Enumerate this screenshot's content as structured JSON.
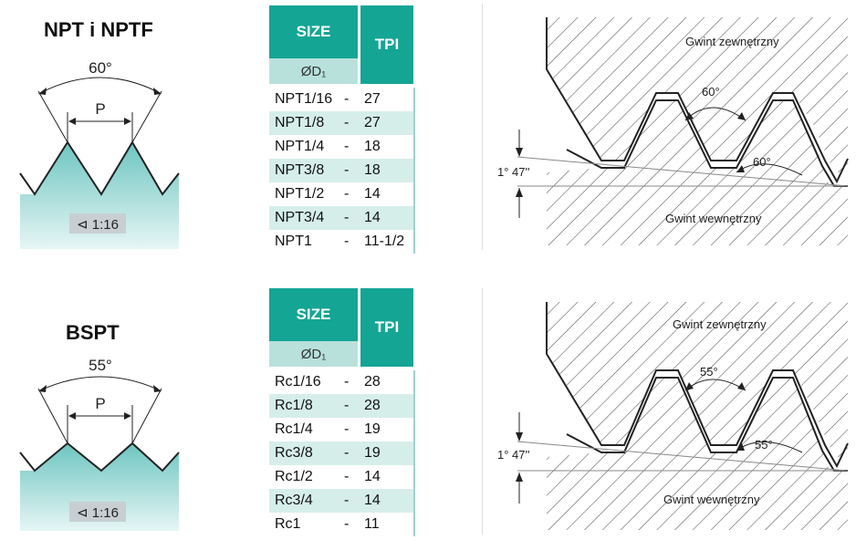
{
  "npt": {
    "title": "NPT i NPTF",
    "angle": "60°",
    "pitch": "P",
    "taper": "⊲ 1:16",
    "table": {
      "size_header": "SIZE",
      "d_header": "ØD₁",
      "tpi_header": "TPI",
      "rows": [
        {
          "size": "NPT1/16",
          "dash": "-",
          "tpi": "27"
        },
        {
          "size": "NPT1/8",
          "dash": "-",
          "tpi": "27"
        },
        {
          "size": "NPT1/4",
          "dash": "-",
          "tpi": "18"
        },
        {
          "size": "NPT3/8",
          "dash": "-",
          "tpi": "18"
        },
        {
          "size": "NPT1/2",
          "dash": "-",
          "tpi": "14"
        },
        {
          "size": "NPT3/4",
          "dash": "-",
          "tpi": "14"
        },
        {
          "size": "NPT1",
          "dash": "-",
          "tpi": "11-1/2"
        }
      ]
    },
    "diagram": {
      "external": "Gwint zewnętrzny",
      "internal": "Gwint wewnętrzny",
      "angle_upper": "60°",
      "angle_lower": "60°",
      "taper_angle": "1° 47''"
    }
  },
  "bspt": {
    "title": "BSPT",
    "angle": "55°",
    "pitch": "P",
    "taper": "⊲ 1:16",
    "table": {
      "size_header": "SIZE",
      "d_header": "ØD₁",
      "tpi_header": "TPI",
      "rows": [
        {
          "size": "Rc1/16",
          "dash": "-",
          "tpi": "28"
        },
        {
          "size": "Rc1/8",
          "dash": "-",
          "tpi": "28"
        },
        {
          "size": "Rc1/4",
          "dash": "-",
          "tpi": "19"
        },
        {
          "size": "Rc3/8",
          "dash": "-",
          "tpi": "19"
        },
        {
          "size": "Rc1/2",
          "dash": "-",
          "tpi": "14"
        },
        {
          "size": "Rc3/4",
          "dash": "-",
          "tpi": "14"
        },
        {
          "size": "Rc1",
          "dash": "-",
          "tpi": "11"
        }
      ]
    },
    "diagram": {
      "external": "Gwint zewnętrzny",
      "internal": "Gwint wewnętrzny",
      "angle_upper": "55°",
      "angle_lower": "55°",
      "taper_angle": "1° 47''"
    }
  },
  "colors": {
    "teal_header": "#14a595",
    "teal_light": "#b9e1dc",
    "row_alt": "#d6eeea",
    "profile_top": "#6dc5c0",
    "profile_bottom": "#e6f6f5"
  }
}
